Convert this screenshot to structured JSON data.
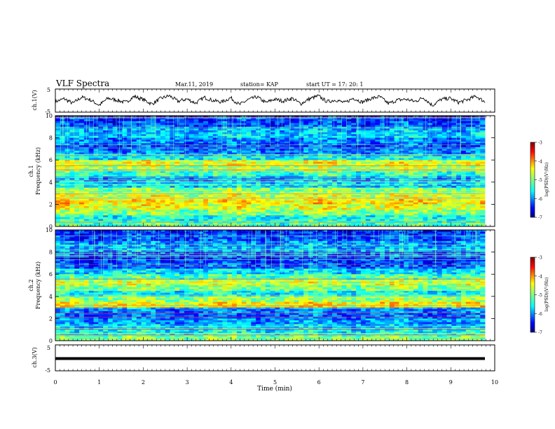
{
  "header": {
    "title": "VLF Spectra",
    "date": "Mar.11, 2019",
    "station": "station= KAP",
    "start": "start  UT =   17: 20: 1"
  },
  "colors": {
    "trace": "#000000",
    "colormap": [
      "#00007f",
      "#0000ff",
      "#007fff",
      "#00ffff",
      "#7fff7f",
      "#ffff00",
      "#ff7f00",
      "#ff0000",
      "#7f0000"
    ]
  },
  "chart_data": [
    {
      "type": "line",
      "ylabel": "ch.1(V)",
      "ylim": [
        -5,
        5
      ],
      "yticks": [
        "5",
        "-5"
      ],
      "xlim": [
        0,
        10
      ],
      "description_values": "fluctuating voltage trace between about -3 and +3 V",
      "y": [
        -0.5,
        0.8,
        -1.2,
        1.5,
        0.3,
        -2.0,
        1.0,
        0.2,
        -0.8,
        1.8,
        0.5,
        -1.5,
        0.9,
        2.1,
        -0.3,
        0.7,
        -1.1,
        1.4,
        0.0,
        -0.6,
        1.2,
        -1.8,
        0.4,
        1.6,
        -0.9,
        0.6,
        -0.2,
        1.0,
        -1.4,
        0.8,
        2.0,
        -0.5,
        0.3,
        -1.0,
        1.1,
        -0.7,
        0.9,
        1.7,
        -1.3,
        0.2,
        0.6,
        -0.4,
        1.3,
        -2.1,
        0.5,
        1.0,
        -0.8,
        0.4,
        1.9,
        -0.6
      ]
    },
    {
      "type": "heatmap",
      "ylabel": "ch.1\nFrequency (kHz)",
      "xlim": [
        0,
        10
      ],
      "ylim": [
        0,
        10
      ],
      "yticks": [
        "0",
        "2",
        "4",
        "6",
        "8",
        "10"
      ],
      "colorbar": {
        "label": "log(PSD)(V²/Hz)",
        "ticks": [
          "-3",
          "-4",
          "-5",
          "-6",
          "-7"
        ],
        "range": [
          -7,
          -3
        ]
      },
      "band_levels": [
        -5.2,
        -5.4,
        -5.0,
        -4.6,
        -4.4,
        -4.7,
        -5.0,
        -5.6,
        -5.9,
        -5.3,
        -4.8,
        -4.6,
        -5.5,
        -6.0,
        -6.2,
        -6.0,
        -5.7,
        -5.8,
        -6.2,
        -6.3
      ]
    },
    {
      "type": "heatmap",
      "ylabel": "ch.2\nFrequency (kHz)",
      "xlim": [
        0,
        10
      ],
      "ylim": [
        0,
        10
      ],
      "yticks": [
        "0",
        "2",
        "4",
        "6",
        "8",
        "10"
      ],
      "colorbar": {
        "label": "log(PSD)(V²/Hz)",
        "ticks": [
          "-3",
          "-4",
          "-5",
          "-6",
          "-7"
        ],
        "range": [
          -7,
          -3
        ]
      },
      "band_levels": [
        -5.0,
        -5.5,
        -5.7,
        -5.9,
        -6.1,
        -6.0,
        -4.5,
        -4.9,
        -5.5,
        -5.0,
        -4.7,
        -5.2,
        -5.6,
        -6.1,
        -6.3,
        -6.1,
        -5.8,
        -5.9,
        -6.2,
        -6.3
      ]
    },
    {
      "type": "line",
      "ylabel": "ch.3(V)",
      "ylim": [
        -5,
        5
      ],
      "yticks": [
        "5",
        "-5"
      ],
      "xlim": [
        0,
        10
      ],
      "xlabel": "Time  (min)",
      "xticks": [
        "0",
        "1",
        "2",
        "3",
        "4",
        "5",
        "6",
        "7",
        "8",
        "9",
        "10"
      ],
      "y_constant": 0
    }
  ]
}
